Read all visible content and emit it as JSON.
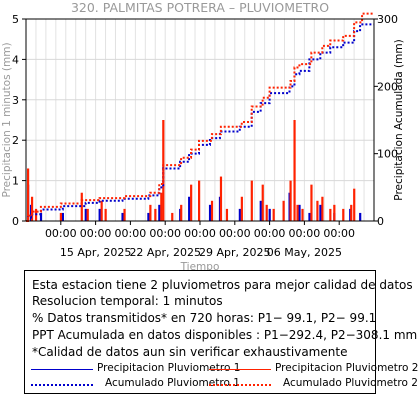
{
  "chart_data": {
    "type": "bar+line",
    "title": "320. PALMITAS POTRERA – PLUVIOMETRO",
    "xlabel": "Tiempo",
    "ylabel_left": "Precipitacion 1 minutos (mm)",
    "ylabel_right": "Precipitacion Acumulada (mm)",
    "x_start": "2025-04-09",
    "x_end": "2025-05-14",
    "ylim_left": [
      0,
      5
    ],
    "ylim_right": [
      0,
      300
    ],
    "yticks_left": [
      "0",
      "1",
      "2",
      "3",
      "4",
      "5"
    ],
    "yticks_right": [
      "0",
      "100",
      "200",
      "300"
    ],
    "x_tick_labels": [
      "00:00",
      "00:00",
      "00:00",
      "00:00",
      "00:00",
      "00:00",
      "00:00",
      "00:00",
      "00:00",
      "00:00"
    ],
    "x_date_labels": [
      "15 Apr, 2025",
      "22 Apr, 2025",
      "29 Apr, 2025",
      "06 May, 2025"
    ],
    "grid": true,
    "series": [
      {
        "name": "Precipitacion Pluviometro 1",
        "kind": "bar",
        "color": "#0000cc",
        "points": [
          [
            0.2,
            0.9
          ],
          [
            0.5,
            0.4
          ],
          [
            1.5,
            0.2
          ],
          [
            3.7,
            0.2
          ],
          [
            6.0,
            0.3
          ],
          [
            7.4,
            0.3
          ],
          [
            9.7,
            0.2
          ],
          [
            12.3,
            0.2
          ],
          [
            13.4,
            0.4
          ],
          [
            15.5,
            0.3
          ],
          [
            16.4,
            0.6
          ],
          [
            18.5,
            0.4
          ],
          [
            19.5,
            0.6
          ],
          [
            21.5,
            0.3
          ],
          [
            23.6,
            0.5
          ],
          [
            24.5,
            0.3
          ],
          [
            26.5,
            0.7
          ],
          [
            27.5,
            0.4
          ],
          [
            28.5,
            0.2
          ],
          [
            29.6,
            0.4
          ],
          [
            31.0,
            0.2
          ],
          [
            32.6,
            0.3
          ],
          [
            33.6,
            0.2
          ]
        ]
      },
      {
        "name": "Precipitacion Pluviometro 2",
        "kind": "bar",
        "color": "#ff2200",
        "points": [
          [
            0.2,
            1.3
          ],
          [
            0.6,
            0.6
          ],
          [
            1.0,
            0.3
          ],
          [
            3.5,
            0.2
          ],
          [
            5.6,
            0.7
          ],
          [
            6.2,
            0.3
          ],
          [
            7.6,
            0.5
          ],
          [
            8.0,
            0.3
          ],
          [
            9.9,
            0.3
          ],
          [
            12.5,
            0.4
          ],
          [
            13.0,
            0.3
          ],
          [
            13.6,
            0.7
          ],
          [
            13.8,
            2.5
          ],
          [
            14.7,
            0.2
          ],
          [
            15.6,
            0.4
          ],
          [
            16.6,
            0.9
          ],
          [
            17.4,
            1.0
          ],
          [
            18.7,
            0.5
          ],
          [
            19.6,
            1.1
          ],
          [
            20.2,
            0.3
          ],
          [
            21.7,
            0.6
          ],
          [
            22.7,
            1.0
          ],
          [
            23.8,
            0.9
          ],
          [
            24.2,
            0.4
          ],
          [
            24.9,
            0.3
          ],
          [
            25.9,
            0.5
          ],
          [
            26.6,
            1.0
          ],
          [
            27.0,
            2.5
          ],
          [
            27.3,
            0.4
          ],
          [
            27.8,
            0.3
          ],
          [
            28.7,
            0.9
          ],
          [
            29.3,
            0.5
          ],
          [
            29.8,
            0.6
          ],
          [
            30.6,
            0.3
          ],
          [
            31.0,
            0.4
          ],
          [
            31.9,
            0.3
          ],
          [
            32.7,
            0.4
          ],
          [
            33.0,
            0.8
          ]
        ]
      },
      {
        "name": "Acumulado Pluviometro 1",
        "kind": "line",
        "color": "#0000cc",
        "points": [
          [
            0,
            0
          ],
          [
            0.2,
            5
          ],
          [
            0.5,
            10
          ],
          [
            1.5,
            17
          ],
          [
            3.7,
            22
          ],
          [
            6.0,
            27
          ],
          [
            7.4,
            30
          ],
          [
            9.7,
            33
          ],
          [
            12.3,
            38
          ],
          [
            13.4,
            50
          ],
          [
            13.8,
            78
          ],
          [
            15.5,
            88
          ],
          [
            16.4,
            100
          ],
          [
            17.4,
            113
          ],
          [
            18.5,
            123
          ],
          [
            19.5,
            133
          ],
          [
            21.5,
            140
          ],
          [
            22.7,
            162
          ],
          [
            23.6,
            175
          ],
          [
            24.5,
            190
          ],
          [
            26.5,
            200
          ],
          [
            27.0,
            218
          ],
          [
            27.5,
            223
          ],
          [
            28.5,
            240
          ],
          [
            29.6,
            250
          ],
          [
            30.6,
            258
          ],
          [
            31.9,
            265
          ],
          [
            33.0,
            282
          ],
          [
            33.6,
            292
          ],
          [
            35,
            292
          ]
        ]
      },
      {
        "name": "Acumulado Pluviometro 2",
        "kind": "line",
        "color": "#ff2200",
        "points": [
          [
            0,
            0
          ],
          [
            0.2,
            8
          ],
          [
            0.6,
            14
          ],
          [
            1.5,
            21
          ],
          [
            3.5,
            26
          ],
          [
            5.6,
            31
          ],
          [
            7.4,
            34
          ],
          [
            9.9,
            37
          ],
          [
            12.5,
            42
          ],
          [
            13.4,
            55
          ],
          [
            13.8,
            83
          ],
          [
            15.6,
            94
          ],
          [
            16.6,
            106
          ],
          [
            17.4,
            119
          ],
          [
            18.7,
            129
          ],
          [
            19.6,
            140
          ],
          [
            21.7,
            147
          ],
          [
            22.7,
            170
          ],
          [
            23.8,
            183
          ],
          [
            24.5,
            198
          ],
          [
            26.6,
            208
          ],
          [
            27.0,
            228
          ],
          [
            27.5,
            233
          ],
          [
            28.7,
            250
          ],
          [
            29.8,
            260
          ],
          [
            30.6,
            268
          ],
          [
            31.9,
            275
          ],
          [
            33.0,
            295
          ],
          [
            33.8,
            308
          ],
          [
            35,
            308
          ]
        ]
      }
    ]
  },
  "info": {
    "line1": "Esta estacion tiene 2 pluviometros para mejor calidad de datos",
    "line2": "Resolucion temporal: 1 minutos",
    "line3": "% Datos transmitidos* en 720 horas: P1− 99.1, P2− 99.1",
    "line4": "PPT Acumulada en datos disponibles : P1−292.4, P2−308.1 mm",
    "line5": "*Calidad de datos aun sin verificar exhaustivamente"
  },
  "legend": {
    "item1": "Precipitacion Pluviometro 1",
    "item2": "Precipitacion Pluviometro 2",
    "item3": "Acumulado Pluviometro 1",
    "item4": "Acumulado Pluviometro 2"
  }
}
